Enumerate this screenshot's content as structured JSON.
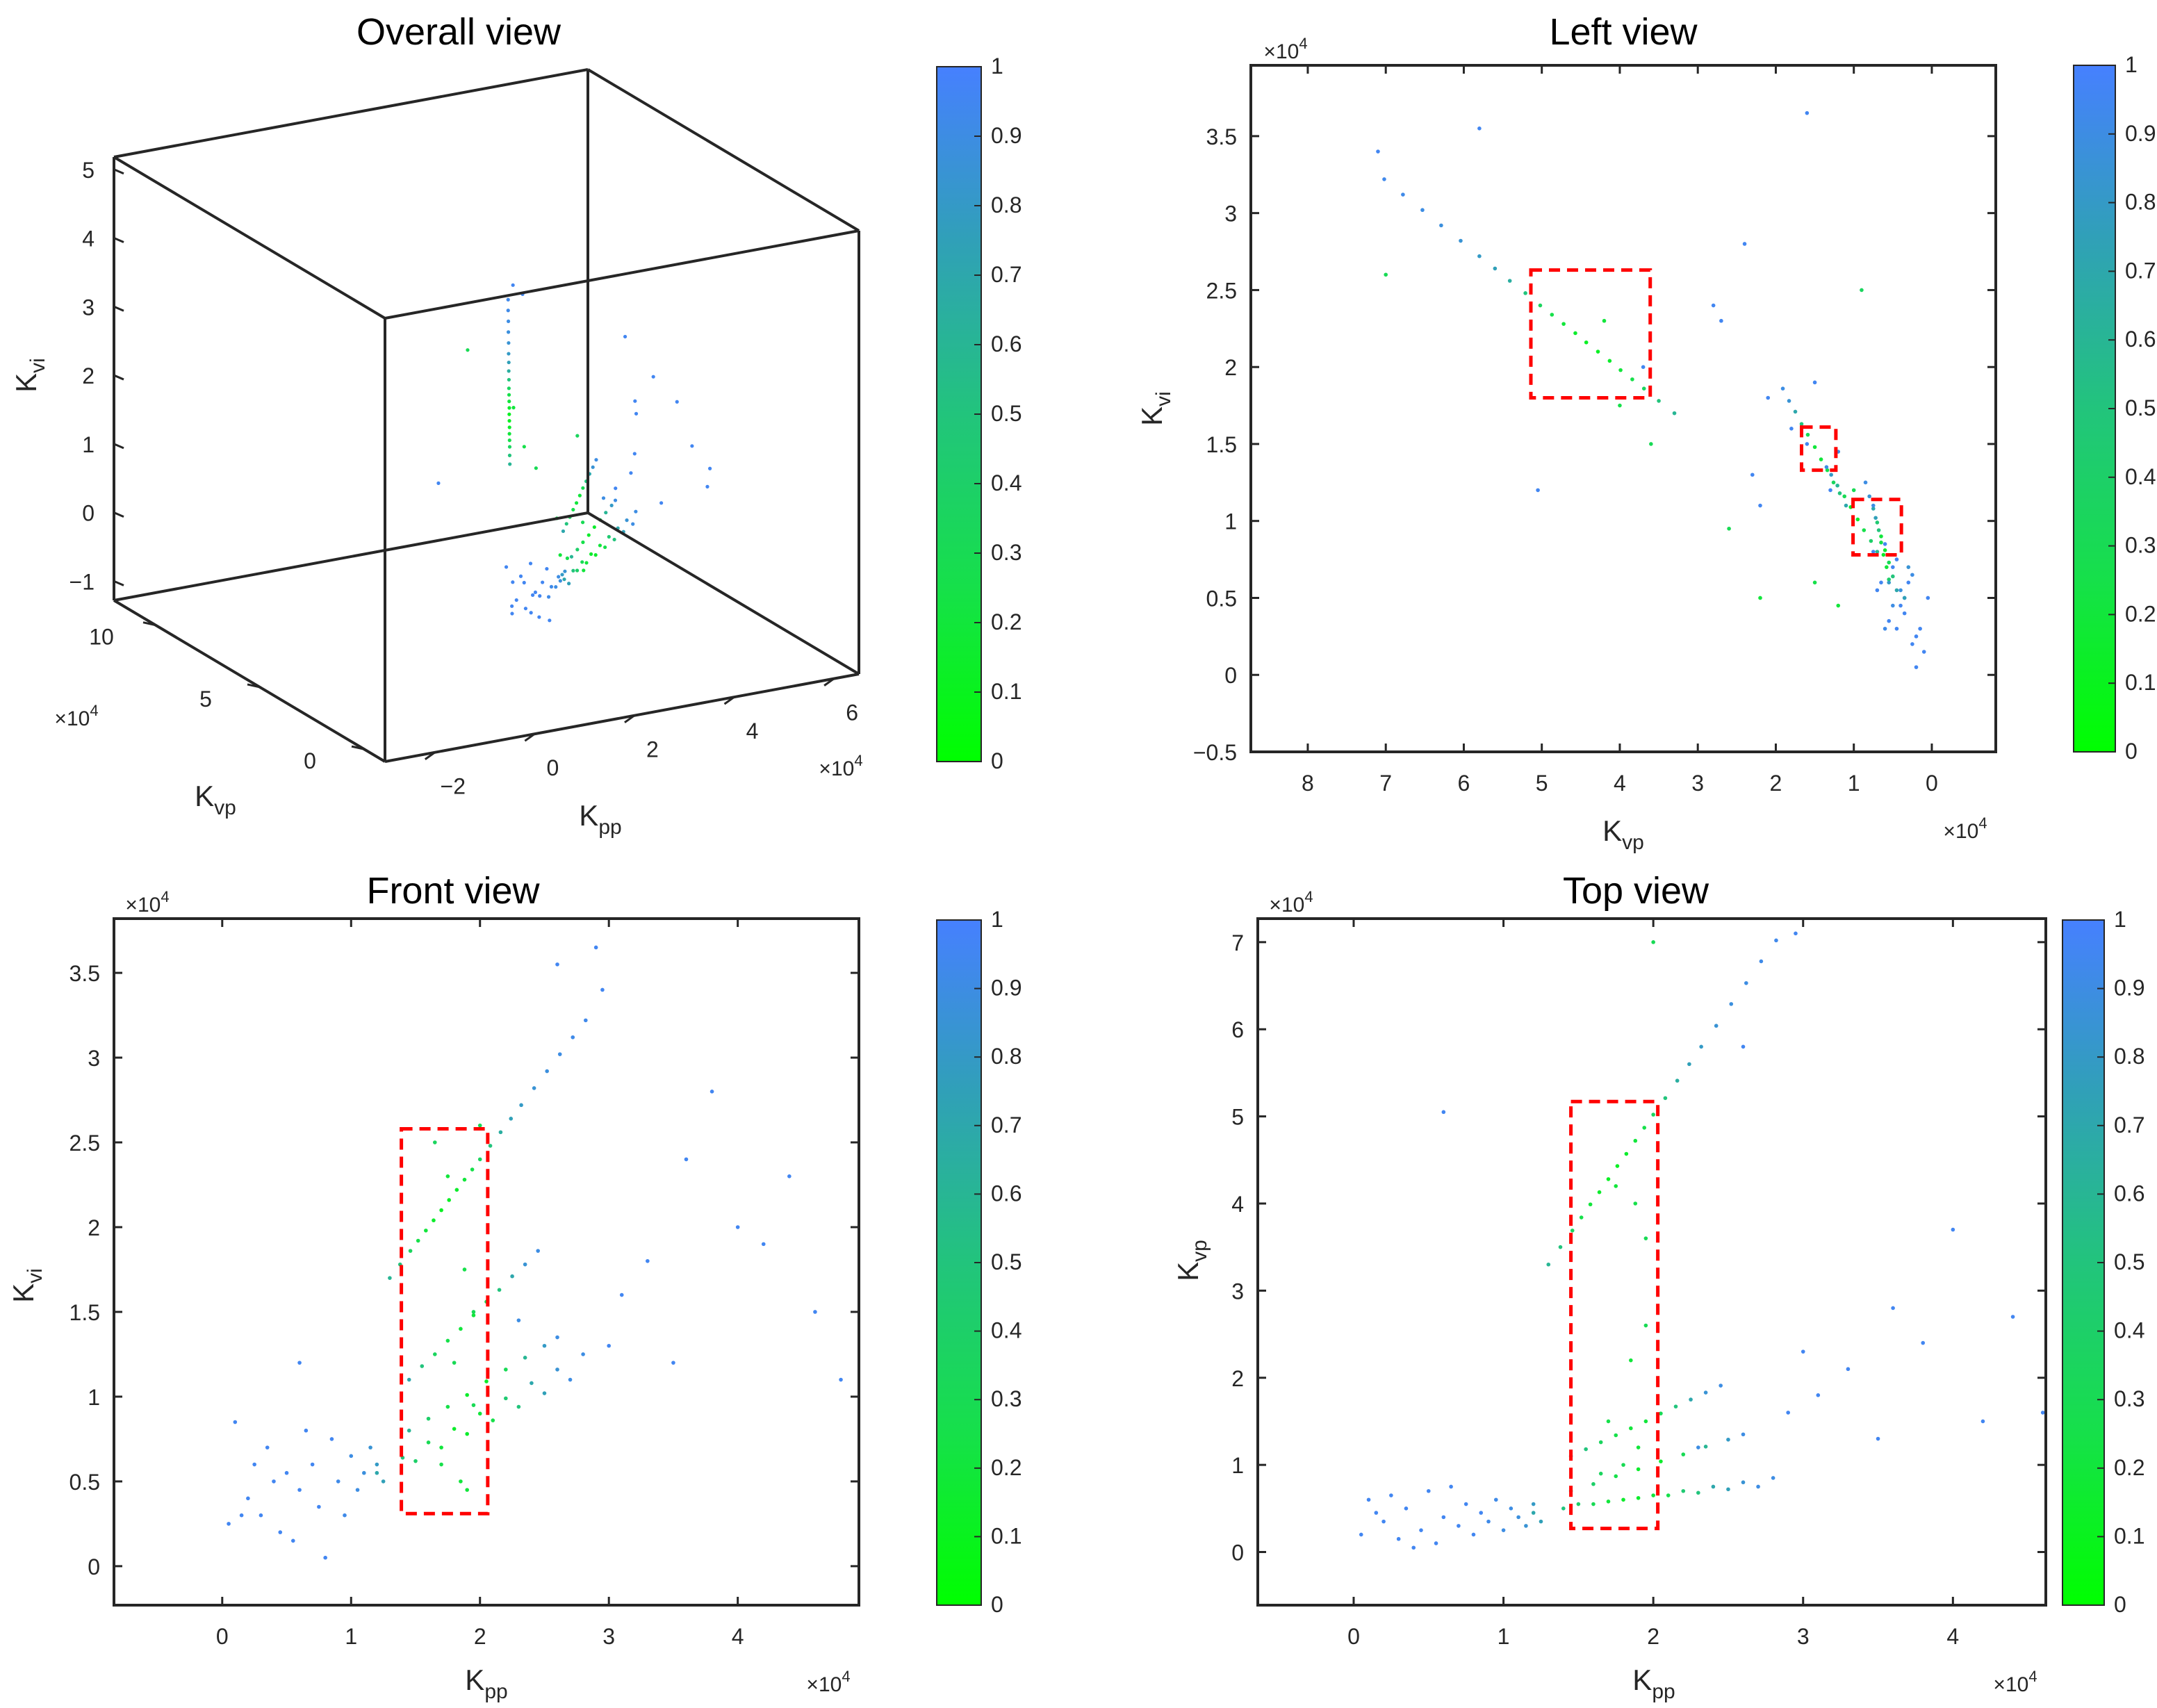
{
  "chart_data": {
    "type": "scatter",
    "point_fields": [
      "Kpp_x1e4",
      "Kvp_x1e4",
      "Kvi_x1e4",
      "color_value"
    ],
    "points": [
      [
        1.3,
        3.3,
        1.7,
        0.6
      ],
      [
        1.38,
        3.5,
        1.78,
        0.5
      ],
      [
        1.46,
        3.69,
        1.86,
        0.35
      ],
      [
        1.52,
        3.84,
        1.92,
        0.25
      ],
      [
        1.58,
        3.99,
        1.98,
        0.2
      ],
      [
        1.64,
        4.13,
        2.04,
        0.15
      ],
      [
        1.7,
        4.28,
        2.1,
        0.12
      ],
      [
        1.76,
        4.43,
        2.16,
        0.12
      ],
      [
        1.82,
        4.57,
        2.22,
        0.15
      ],
      [
        1.88,
        4.72,
        2.28,
        0.2
      ],
      [
        1.94,
        4.87,
        2.34,
        0.25
      ],
      [
        2.0,
        5.02,
        2.4,
        0.35
      ],
      [
        2.08,
        5.21,
        2.48,
        0.5
      ],
      [
        2.16,
        5.41,
        2.56,
        0.65
      ],
      [
        2.24,
        5.6,
        2.64,
        0.75
      ],
      [
        2.32,
        5.8,
        2.72,
        0.8
      ],
      [
        2.42,
        6.04,
        2.82,
        0.85
      ],
      [
        2.52,
        6.29,
        2.92,
        0.88
      ],
      [
        2.62,
        6.53,
        3.02,
        0.9
      ],
      [
        2.72,
        6.78,
        3.12,
        0.92
      ],
      [
        2.82,
        7.02,
        3.22,
        0.93
      ],
      [
        1.45,
        1.1,
        1.1,
        0.7
      ],
      [
        1.55,
        1.18,
        1.18,
        0.5
      ],
      [
        1.65,
        1.26,
        1.25,
        0.35
      ],
      [
        1.75,
        1.34,
        1.33,
        0.25
      ],
      [
        1.85,
        1.42,
        1.4,
        0.2
      ],
      [
        1.95,
        1.5,
        1.48,
        0.2
      ],
      [
        2.05,
        1.59,
        1.56,
        0.3
      ],
      [
        2.15,
        1.67,
        1.63,
        0.5
      ],
      [
        2.25,
        1.75,
        1.71,
        0.7
      ],
      [
        2.35,
        1.83,
        1.78,
        0.85
      ],
      [
        2.45,
        1.91,
        1.86,
        0.9
      ],
      [
        1.45,
        0.7,
        0.8,
        0.6
      ],
      [
        1.6,
        0.78,
        0.87,
        0.4
      ],
      [
        1.75,
        0.87,
        0.94,
        0.25
      ],
      [
        1.9,
        0.95,
        1.01,
        0.15
      ],
      [
        2.05,
        1.04,
        1.09,
        0.15
      ],
      [
        2.2,
        1.12,
        1.16,
        0.3
      ],
      [
        2.35,
        1.21,
        1.23,
        0.6
      ],
      [
        2.5,
        1.29,
        1.3,
        0.8
      ],
      [
        2.6,
        1.35,
        1.35,
        0.9
      ],
      [
        1.2,
        0.45,
        0.55,
        0.7
      ],
      [
        1.4,
        0.5,
        0.64,
        0.5
      ],
      [
        1.6,
        0.55,
        0.73,
        0.3
      ],
      [
        1.8,
        0.6,
        0.81,
        0.15
      ],
      [
        2.0,
        0.65,
        0.9,
        0.2
      ],
      [
        2.2,
        0.7,
        0.99,
        0.45
      ],
      [
        2.4,
        0.75,
        1.08,
        0.7
      ],
      [
        2.6,
        0.8,
        1.16,
        0.85
      ],
      [
        2.8,
        0.85,
        1.25,
        0.9
      ],
      [
        1.5,
        0.55,
        0.62,
        0.4
      ],
      [
        1.7,
        0.58,
        0.7,
        0.2
      ],
      [
        1.9,
        0.62,
        0.78,
        0.15
      ],
      [
        2.1,
        0.65,
        0.86,
        0.25
      ],
      [
        2.3,
        0.68,
        0.94,
        0.5
      ],
      [
        2.5,
        0.72,
        1.02,
        0.75
      ],
      [
        2.7,
        0.75,
        1.1,
        0.9
      ],
      [
        0.05,
        0.2,
        0.25,
        0.95
      ],
      [
        0.1,
        0.6,
        0.85,
        0.95
      ],
      [
        0.2,
        0.35,
        0.4,
        0.95
      ],
      [
        0.3,
        0.15,
        0.3,
        0.95
      ],
      [
        0.35,
        0.5,
        0.7,
        0.95
      ],
      [
        0.45,
        0.25,
        0.2,
        0.95
      ],
      [
        0.5,
        0.7,
        0.55,
        0.95
      ],
      [
        0.55,
        0.1,
        0.15,
        0.95
      ],
      [
        0.6,
        0.4,
        0.45,
        0.95
      ],
      [
        0.7,
        0.3,
        0.6,
        0.95
      ],
      [
        0.75,
        0.55,
        0.35,
        0.95
      ],
      [
        0.8,
        0.2,
        0.05,
        0.95
      ],
      [
        0.85,
        0.45,
        0.75,
        0.95
      ],
      [
        0.9,
        0.35,
        0.5,
        0.92
      ],
      [
        0.95,
        0.6,
        0.3,
        0.92
      ],
      [
        1.0,
        0.25,
        0.65,
        0.9
      ],
      [
        1.05,
        0.5,
        0.45,
        0.9
      ],
      [
        1.1,
        0.4,
        0.55,
        0.88
      ],
      [
        1.15,
        0.3,
        0.7,
        0.85
      ],
      [
        0.25,
        0.65,
        0.6,
        0.95
      ],
      [
        0.65,
        0.75,
        0.8,
        0.95
      ],
      [
        1.2,
        0.55,
        0.6,
        0.8
      ],
      [
        0.4,
        0.05,
        0.5,
        0.95
      ],
      [
        0.15,
        0.45,
        0.3,
        0.95
      ],
      [
        1.25,
        0.35,
        0.5,
        0.75
      ],
      [
        3.1,
        1.8,
        1.6,
        0.95
      ],
      [
        3.3,
        2.1,
        1.8,
        0.95
      ],
      [
        3.6,
        2.8,
        2.4,
        0.95
      ],
      [
        3.8,
        2.4,
        2.8,
        0.95
      ],
      [
        4.0,
        3.7,
        2.0,
        0.95
      ],
      [
        4.2,
        1.5,
        1.9,
        0.95
      ],
      [
        4.4,
        2.7,
        2.3,
        0.95
      ],
      [
        4.8,
        2.2,
        1.1,
        0.95
      ],
      [
        3.5,
        1.3,
        1.2,
        0.95
      ],
      [
        2.9,
        1.6,
        3.65,
        0.95
      ],
      [
        4.6,
        1.6,
        1.5,
        0.95
      ],
      [
        3.0,
        2.3,
        1.3,
        0.95
      ],
      [
        0.6,
        5.05,
        1.2,
        0.95
      ],
      [
        2.3,
        1.2,
        1.45,
        0.9
      ],
      [
        2.95,
        7.1,
        3.4,
        0.95
      ],
      [
        2.6,
        5.8,
        3.55,
        0.95
      ],
      [
        1.7,
        1.5,
        0.6,
        0.25
      ],
      [
        1.85,
        2.2,
        0.5,
        0.2
      ],
      [
        1.95,
        3.6,
        1.5,
        0.3
      ],
      [
        1.8,
        1.0,
        1.2,
        0.3
      ],
      [
        1.65,
        0.9,
        2.5,
        0.35
      ],
      [
        1.9,
        1.2,
        0.45,
        0.2
      ],
      [
        1.95,
        2.6,
        0.95,
        0.3
      ],
      [
        2.0,
        7.0,
        2.6,
        0.3
      ],
      [
        1.75,
        4.2,
        2.3,
        0.2
      ],
      [
        1.88,
        4.0,
        1.75,
        0.25
      ]
    ],
    "colormap": [
      "#00ff00",
      "#16e04a",
      "#22c47c",
      "#30a0b8",
      "#4680ff"
    ],
    "colorbar_ticks": [
      "0",
      "0.1",
      "0.2",
      "0.3",
      "0.4",
      "0.5",
      "0.6",
      "0.7",
      "0.8",
      "0.9",
      "1"
    ],
    "panels": [
      {
        "id": "overall",
        "type": "scatter3d",
        "title": "Overall view",
        "xlabel": {
          "main": "K",
          "sub": "pp"
        },
        "ylabel": {
          "main": "K",
          "sub": "vp"
        },
        "zlabel": {
          "main": "K",
          "sub": "vi"
        },
        "xlim": [
          -3.0,
          6.5
        ],
        "ylim": [
          -1.0,
          12.0
        ],
        "zlim": [
          -1.28,
          5.18
        ],
        "xticks": [
          -2,
          0,
          2,
          4,
          6
        ],
        "xtick_labels": [
          "−2",
          "0",
          "2",
          "4",
          "6"
        ],
        "yticks": [
          0,
          5,
          10
        ],
        "ytick_labels": [
          "0",
          "5",
          "10"
        ],
        "zticks": [
          -1,
          0,
          1,
          2,
          3,
          4,
          5
        ],
        "ztick_labels": [
          "−1",
          "0",
          "1",
          "2",
          "3",
          "4",
          "5"
        ],
        "x_exponent": "×10",
        "x_exponent_power": "4",
        "y_exponent": "×10",
        "y_exponent_power": "4"
      },
      {
        "id": "left",
        "type": "scatter",
        "title": "Left view",
        "x_field": 1,
        "y_field": 2,
        "x_reversed": true,
        "xlabel": {
          "main": "K",
          "sub": "vp"
        },
        "ylabel": {
          "main": "K",
          "sub": "vi"
        },
        "xlim": [
          -0.82,
          8.73
        ],
        "ylim": [
          -0.5,
          3.96
        ],
        "xticks": [
          0,
          1,
          2,
          3,
          4,
          5,
          6,
          7,
          8
        ],
        "xtick_labels": [
          "0",
          "1",
          "2",
          "3",
          "4",
          "5",
          "6",
          "7",
          "8"
        ],
        "yticks": [
          -0.5,
          0,
          0.5,
          1,
          1.5,
          2,
          2.5,
          3,
          3.5
        ],
        "ytick_labels": [
          "−0.5",
          "0",
          "0.5",
          "1",
          "1.5",
          "2",
          "2.5",
          "3",
          "3.5"
        ],
        "x_exponent": "×10",
        "x_exponent_power": "4",
        "y_exponent": "×10",
        "y_exponent_power": "4",
        "highlight_boxes": [
          [
            3.61,
            5.14,
            1.8,
            2.63
          ],
          [
            1.23,
            1.67,
            1.33,
            1.61
          ],
          [
            0.39,
            1.01,
            0.78,
            1.14
          ]
        ]
      },
      {
        "id": "front",
        "type": "scatter",
        "title": "Front view",
        "x_field": 0,
        "y_field": 2,
        "x_reversed": false,
        "xlabel": {
          "main": "K",
          "sub": "pp"
        },
        "ylabel": {
          "main": "K",
          "sub": "vi"
        },
        "xlim": [
          -0.84,
          4.94
        ],
        "ylim": [
          -0.23,
          3.82
        ],
        "xticks": [
          0,
          1,
          2,
          3,
          4
        ],
        "xtick_labels": [
          "0",
          "1",
          "2",
          "3",
          "4"
        ],
        "yticks": [
          0,
          0.5,
          1,
          1.5,
          2,
          2.5,
          3,
          3.5
        ],
        "ytick_labels": [
          "0",
          "0.5",
          "1",
          "1.5",
          "2",
          "2.5",
          "3",
          "3.5"
        ],
        "x_exponent": "×10",
        "x_exponent_power": "4",
        "y_exponent": "×10",
        "y_exponent_power": "4",
        "highlight_boxes": [
          [
            1.39,
            2.06,
            0.31,
            2.58
          ]
        ]
      },
      {
        "id": "top",
        "type": "scatter",
        "title": "Top view",
        "x_field": 0,
        "y_field": 1,
        "x_reversed": false,
        "xlabel": {
          "main": "K",
          "sub": "pp"
        },
        "ylabel": {
          "main": "K",
          "sub": "vp"
        },
        "xlim": [
          -0.64,
          4.62
        ],
        "ylim": [
          -0.61,
          7.27
        ],
        "xticks": [
          0,
          1,
          2,
          3,
          4
        ],
        "xtick_labels": [
          "0",
          "1",
          "2",
          "3",
          "4"
        ],
        "yticks": [
          0,
          1,
          2,
          3,
          4,
          5,
          6,
          7
        ],
        "ytick_labels": [
          "0",
          "1",
          "2",
          "3",
          "4",
          "5",
          "6",
          "7"
        ],
        "x_exponent": "×10",
        "x_exponent_power": "4",
        "y_exponent": "×10",
        "y_exponent_power": "4",
        "highlight_boxes": [
          [
            1.45,
            2.03,
            0.27,
            5.17
          ]
        ]
      }
    ],
    "highlight_color": "#ff0000"
  }
}
